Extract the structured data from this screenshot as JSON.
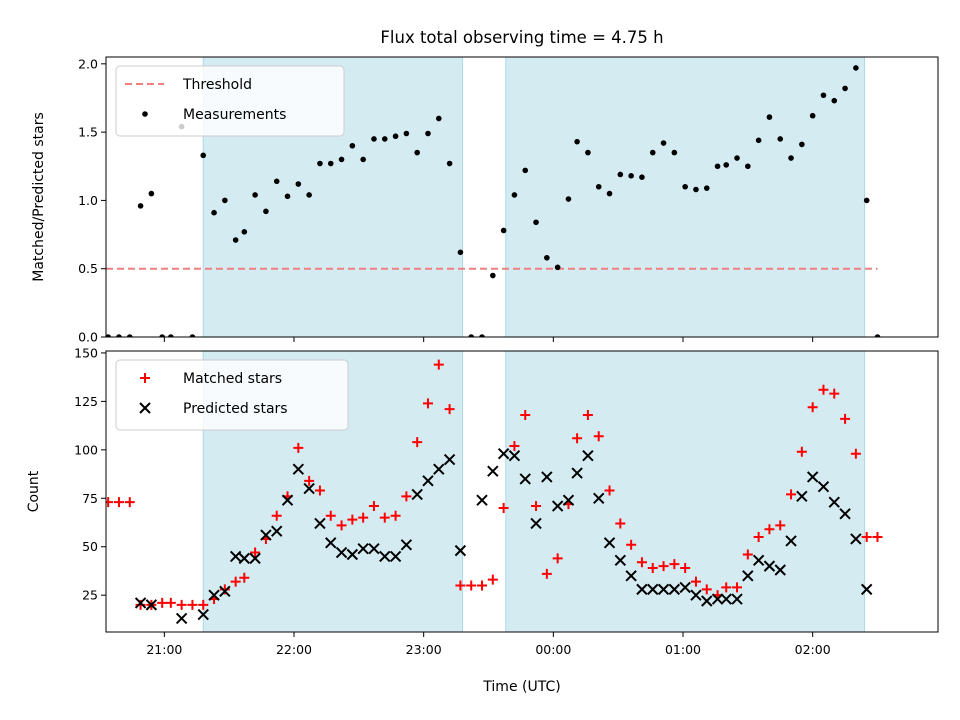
{
  "chart_data": [
    {
      "type": "scatter",
      "title": "Flux total observing time = 4.75 h",
      "xlabel": "",
      "ylabel": "Matched/Predicted stars",
      "xlim": [
        "20:33",
        "02:58"
      ],
      "ylim": [
        0,
        2.05
      ],
      "yticks": [
        0.0,
        0.5,
        1.0,
        1.5,
        2.0
      ],
      "ytick_labels": [
        "0.0",
        "0.5",
        "1.0",
        "1.5",
        "2.0"
      ],
      "x_ticks": [
        "21:00",
        "22:00",
        "23:00",
        "00:00",
        "01:00",
        "02:00"
      ],
      "x_tick_labels_visible": false,
      "legend_position": "top-left",
      "shaded_intervals": [
        [
          "21:18",
          "23:18"
        ],
        [
          "23:38",
          "02:24"
        ]
      ],
      "shade_color": "#add8e6",
      "threshold": {
        "name": "Threshold",
        "value": 0.5,
        "x_range": [
          "20:33",
          "02:30"
        ],
        "color": "#f08080",
        "style": "dashed"
      },
      "series": [
        {
          "name": "Measurements",
          "marker": "dot",
          "color": "#000000",
          "x": [
            "20:34",
            "20:39",
            "20:44",
            "20:49",
            "20:54",
            "20:59",
            "21:03",
            "21:08",
            "21:13",
            "21:18",
            "21:23",
            "21:28",
            "21:33",
            "21:37",
            "21:42",
            "21:47",
            "21:52",
            "21:57",
            "22:02",
            "22:07",
            "22:12",
            "22:17",
            "22:22",
            "22:27",
            "22:32",
            "22:37",
            "22:42",
            "22:47",
            "22:52",
            "22:57",
            "23:02",
            "23:07",
            "23:12",
            "23:17",
            "23:22",
            "23:27",
            "23:32",
            "23:37",
            "23:42",
            "23:47",
            "23:52",
            "23:57",
            "00:02",
            "00:07",
            "00:11",
            "00:16",
            "00:21",
            "00:26",
            "00:31",
            "00:36",
            "00:41",
            "00:46",
            "00:51",
            "00:56",
            "01:01",
            "01:06",
            "01:11",
            "01:16",
            "01:20",
            "01:25",
            "01:30",
            "01:35",
            "01:40",
            "01:45",
            "01:50",
            "01:55",
            "02:00",
            "02:05",
            "02:10",
            "02:15",
            "02:20",
            "02:25",
            "02:30"
          ],
          "y": [
            0.0,
            0.0,
            0.0,
            0.96,
            1.05,
            0.0,
            0.0,
            1.54,
            0.0,
            1.33,
            0.91,
            1.0,
            0.71,
            0.77,
            1.04,
            0.92,
            1.14,
            1.03,
            1.12,
            1.04,
            1.27,
            1.27,
            1.3,
            1.4,
            1.3,
            1.45,
            1.45,
            1.47,
            1.49,
            1.35,
            1.49,
            1.6,
            1.27,
            0.62,
            0.0,
            0.0,
            0.45,
            0.78,
            1.04,
            1.22,
            0.84,
            0.58,
            0.51,
            1.01,
            1.43,
            1.35,
            1.1,
            1.05,
            1.19,
            1.18,
            1.17,
            1.35,
            1.42,
            1.35,
            1.1,
            1.08,
            1.09,
            1.25,
            1.26,
            1.31,
            1.25,
            1.44,
            1.61,
            1.45,
            1.31,
            1.41,
            1.62,
            1.77,
            1.73,
            1.82,
            1.97,
            1.0,
            0.0
          ]
        }
      ]
    },
    {
      "type": "scatter",
      "title": "",
      "xlabel": "Time (UTC)",
      "ylabel": "Count",
      "xlim": [
        "20:33",
        "02:58"
      ],
      "ylim": [
        6,
        151
      ],
      "yticks": [
        25,
        50,
        75,
        100,
        125,
        150
      ],
      "ytick_labels": [
        "25",
        "50",
        "75",
        "100",
        "125",
        "150"
      ],
      "x_ticks": [
        "21:00",
        "22:00",
        "23:00",
        "00:00",
        "01:00",
        "02:00"
      ],
      "x_tick_labels": [
        "21:00",
        "22:00",
        "23:00",
        "00:00",
        "01:00",
        "02:00"
      ],
      "legend_position": "top-left",
      "shaded_intervals": [
        [
          "21:18",
          "23:18"
        ],
        [
          "23:38",
          "02:24"
        ]
      ],
      "shade_color": "#add8e6",
      "series": [
        {
          "name": "Matched stars",
          "marker": "plus",
          "color": "#ff0000",
          "x": [
            "20:34",
            "20:39",
            "20:44",
            "20:49",
            "20:54",
            "20:59",
            "21:03",
            "21:08",
            "21:13",
            "21:18",
            "21:23",
            "21:28",
            "21:33",
            "21:37",
            "21:42",
            "21:47",
            "21:52",
            "21:57",
            "22:02",
            "22:07",
            "22:12",
            "22:17",
            "22:22",
            "22:27",
            "22:32",
            "22:37",
            "22:42",
            "22:47",
            "22:52",
            "22:57",
            "23:02",
            "23:07",
            "23:12",
            "23:17",
            "23:22",
            "23:27",
            "23:32",
            "23:37",
            "23:42",
            "23:47",
            "23:52",
            "23:57",
            "00:02",
            "00:07",
            "00:11",
            "00:16",
            "00:21",
            "00:26",
            "00:31",
            "00:36",
            "00:41",
            "00:46",
            "00:51",
            "00:56",
            "01:01",
            "01:06",
            "01:11",
            "01:16",
            "01:20",
            "01:25",
            "01:30",
            "01:35",
            "01:40",
            "01:45",
            "01:50",
            "01:55",
            "02:00",
            "02:05",
            "02:10",
            "02:15",
            "02:20",
            "02:25",
            "02:30"
          ],
          "y": [
            73,
            73,
            73,
            20,
            20,
            21,
            21,
            20,
            20,
            20,
            23,
            28,
            32,
            34,
            47,
            54,
            66,
            76,
            101,
            84,
            79,
            66,
            61,
            64,
            65,
            71,
            65,
            66,
            76,
            104,
            124,
            144,
            121,
            30,
            30,
            30,
            33,
            70,
            102,
            118,
            71,
            36,
            44,
            72,
            106,
            118,
            107,
            79,
            62,
            51,
            42,
            39,
            40,
            41,
            39,
            32,
            28,
            25,
            29,
            29,
            46,
            55,
            59,
            61,
            77,
            99,
            122,
            131,
            129,
            116,
            98,
            55,
            55
          ]
        },
        {
          "name": "Predicted stars",
          "marker": "x",
          "color": "#000000",
          "x": [
            "20:49",
            "20:54",
            "21:08",
            "21:18",
            "21:23",
            "21:28",
            "21:33",
            "21:37",
            "21:42",
            "21:47",
            "21:52",
            "21:57",
            "22:02",
            "22:07",
            "22:12",
            "22:17",
            "22:22",
            "22:27",
            "22:32",
            "22:37",
            "22:42",
            "22:47",
            "22:52",
            "22:57",
            "23:02",
            "23:07",
            "23:12",
            "23:17",
            "23:27",
            "23:32",
            "23:37",
            "23:42",
            "23:47",
            "23:52",
            "23:57",
            "00:02",
            "00:07",
            "00:11",
            "00:16",
            "00:21",
            "00:26",
            "00:31",
            "00:36",
            "00:41",
            "00:46",
            "00:51",
            "00:56",
            "01:01",
            "01:06",
            "01:11",
            "01:16",
            "01:20",
            "01:25",
            "01:30",
            "01:35",
            "01:40",
            "01:45",
            "01:50",
            "01:55",
            "02:00",
            "02:05",
            "02:10",
            "02:15",
            "02:20",
            "02:25"
          ],
          "y": [
            21,
            20,
            13,
            15,
            25,
            27,
            45,
            44,
            44,
            56,
            58,
            74,
            90,
            80,
            62,
            52,
            47,
            46,
            49,
            49,
            45,
            45,
            51,
            77,
            84,
            90,
            95,
            48,
            74,
            89,
            98,
            97,
            85,
            62,
            86,
            71,
            74,
            88,
            97,
            75,
            52,
            43,
            35,
            28,
            28,
            28,
            28,
            29,
            25,
            22,
            23,
            23,
            23,
            35,
            43,
            40,
            38,
            53,
            76,
            86,
            81,
            73,
            67,
            54,
            28
          ]
        }
      ]
    }
  ]
}
